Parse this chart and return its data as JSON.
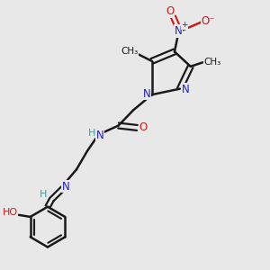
{
  "background_color": "#e8e8e8",
  "bond_color": "#1a1a1a",
  "nitrogen_color": "#2020cc",
  "oxygen_color": "#cc1a1a",
  "teal_color": "#4a9999",
  "figsize": [
    3.0,
    3.0
  ],
  "dpi": 100,
  "xlim": [
    0,
    1
  ],
  "ylim": [
    0,
    1
  ]
}
